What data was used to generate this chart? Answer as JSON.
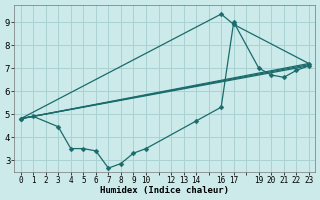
{
  "xlabel": "Humidex (Indice chaleur)",
  "bg_color": "#cceaea",
  "grid_color": "#aad2d2",
  "line_color": "#1a6b6b",
  "xlim": [
    -0.5,
    23.5
  ],
  "ylim": [
    2.5,
    9.75
  ],
  "yticks": [
    3,
    4,
    5,
    6,
    7,
    8,
    9
  ],
  "xtick_hide": [
    11,
    15,
    18
  ],
  "lines": [
    {
      "x": [
        0,
        1,
        3,
        4,
        5,
        6,
        7,
        8,
        9,
        10,
        14,
        16,
        17,
        19,
        20,
        21,
        22,
        23
      ],
      "y": [
        4.8,
        4.9,
        4.45,
        3.5,
        3.5,
        3.4,
        2.65,
        2.85,
        3.3,
        3.5,
        4.7,
        5.3,
        9.0,
        7.0,
        6.7,
        6.6,
        6.9,
        7.1
      ],
      "has_markers": true
    },
    {
      "x": [
        0,
        23
      ],
      "y": [
        4.8,
        7.1
      ],
      "has_markers": false
    },
    {
      "x": [
        0,
        23
      ],
      "y": [
        4.8,
        7.15
      ],
      "has_markers": false
    },
    {
      "x": [
        0,
        23
      ],
      "y": [
        4.8,
        7.2
      ],
      "has_markers": false
    },
    {
      "x": [
        0,
        16,
        17,
        23
      ],
      "y": [
        4.8,
        9.35,
        8.9,
        7.2
      ],
      "has_markers": true
    }
  ]
}
